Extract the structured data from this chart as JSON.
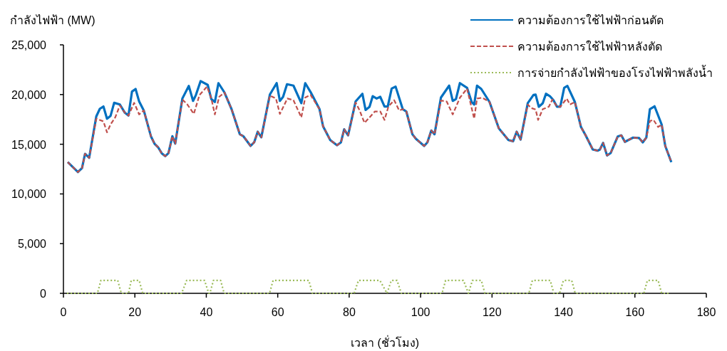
{
  "chart_data": {
    "type": "line",
    "xlabel": "เวลา (ชั่วโมง)",
    "ylabel": "กำลังไฟฟ้า (MW)",
    "xlim": [
      0,
      180
    ],
    "ylim": [
      0,
      25000
    ],
    "xticks": [
      0,
      20,
      40,
      60,
      80,
      100,
      120,
      140,
      160,
      180
    ],
    "yticks": [
      0,
      {
        "value": 5000,
        "label": "5,000"
      },
      {
        "value": 10000,
        "label": "10,000"
      },
      {
        "value": 15000,
        "label": "15,000"
      },
      {
        "value": 20000,
        "label": "20,000"
      },
      {
        "value": 25000,
        "label": "25,000"
      }
    ],
    "legend": "top right",
    "grid": false,
    "series": [
      {
        "name": "ความต้องการใช้ไฟฟ้าก่อนตัด",
        "color": "#0070c0",
        "line_style": "solid",
        "x": [
          1.2,
          4.05,
          5.2,
          6.05,
          7.2,
          9.2,
          10.2,
          11.2,
          12.2,
          13.2,
          14.2,
          15.8,
          17.2,
          18.2,
          19.2,
          20.2,
          21.2,
          22.5,
          24.5,
          25.5,
          26.5,
          27.5,
          28.5,
          29.4,
          30.5,
          31.3,
          33.3,
          35.1,
          36.3,
          37.1,
          38.4,
          40.4,
          41.4,
          42.4,
          43.4,
          45.1,
          47.1,
          49.4,
          50.4,
          52.4,
          53.4,
          54.4,
          55.4,
          57.8,
          59.7,
          60.6,
          61.5,
          62.6,
          64.4,
          66.6,
          67.7,
          69.2,
          71.7,
          72.7,
          74.7,
          76.6,
          77.7,
          78.6,
          79.7,
          81.8,
          83.7,
          84.6,
          85.7,
          86.6,
          87.7,
          88.7,
          89.9,
          90.8,
          91.9,
          93,
          95,
          96,
          97.7,
          98.7,
          101,
          101.9,
          103,
          103.9,
          105.7,
          108,
          109,
          109.9,
          111,
          113,
          114.3,
          115,
          115.8,
          117,
          119.3,
          121.9,
          124.6,
          125.9,
          126.9,
          128,
          130,
          131.6,
          132.2,
          133.1,
          134.2,
          135.1,
          136.2,
          137.2,
          138.2,
          139.1,
          140.2,
          141.1,
          143.2,
          144.9,
          146.2,
          148.2,
          149.6,
          150.2,
          151.1,
          152.2,
          153.2,
          155.2,
          156.2,
          157.2,
          159.5,
          161.2,
          162.2,
          163.2,
          164.2,
          165.5,
          167.5,
          168.5,
          170.2
        ],
        "values": [
          13200,
          12200,
          12600,
          14040,
          13630,
          17800,
          18570,
          18800,
          17570,
          17860,
          19170,
          19000,
          18170,
          17890,
          20300,
          20560,
          19300,
          18400,
          15800,
          15060,
          14700,
          14100,
          13800,
          14100,
          15800,
          15060,
          19600,
          20870,
          19360,
          19960,
          21350,
          20970,
          19540,
          19250,
          21150,
          20200,
          18500,
          16000,
          15800,
          14830,
          15190,
          16260,
          15700,
          20000,
          21150,
          19360,
          19770,
          21040,
          20900,
          19130,
          21150,
          20250,
          18530,
          16800,
          15420,
          14900,
          15190,
          16500,
          15900,
          19300,
          20080,
          18450,
          18770,
          19840,
          19600,
          19770,
          18800,
          18800,
          20600,
          20800,
          18530,
          18300,
          16000,
          15540,
          14830,
          15190,
          16380,
          16000,
          19700,
          20900,
          19360,
          19540,
          21150,
          20680,
          19250,
          19000,
          20900,
          20560,
          19250,
          16600,
          15420,
          15300,
          16260,
          15470,
          19130,
          19960,
          20000,
          18770,
          19130,
          20080,
          19840,
          19430,
          18770,
          18770,
          20680,
          20870,
          19250,
          16740,
          15900,
          14470,
          14350,
          14470,
          15140,
          13870,
          14110,
          15780,
          15900,
          15240,
          15670,
          15620,
          15190,
          15670,
          18530,
          18820,
          16980,
          14830,
          13200
        ]
      },
      {
        "name": "ความต้องการใช้ไฟฟ้าหลังตัด",
        "color": "#c0504d",
        "line_style": "dashed",
        "x": [
          1.2,
          4.05,
          5.2,
          6.05,
          7.2,
          9.2,
          11.2,
          12.2,
          13.2,
          14.5,
          15.8,
          17.2,
          18.2,
          19.8,
          21.2,
          22.5,
          24.5,
          25.5,
          26.5,
          27.5,
          28.5,
          29.4,
          30.5,
          31.3,
          33.3,
          34.7,
          36.5,
          38.1,
          40.2,
          41.4,
          42.4,
          43.6,
          45.1,
          47.1,
          49.4,
          50.4,
          52.4,
          53.4,
          54.4,
          55.4,
          57.8,
          59.5,
          60.6,
          62.7,
          64.4,
          66.6,
          67.7,
          69.2,
          71.7,
          72.7,
          74.7,
          76.6,
          77.7,
          78.6,
          79.7,
          81.8,
          82.8,
          84.3,
          85.7,
          87.2,
          88.7,
          89.9,
          91,
          92.6,
          94,
          95,
          96,
          97.7,
          98.7,
          101,
          101.9,
          103,
          103.9,
          105.7,
          107.3,
          109,
          111,
          113,
          115,
          115.8,
          117.3,
          119.3,
          121.9,
          124.6,
          125.9,
          126.9,
          128,
          130,
          130.9,
          132.2,
          132.9,
          134.2,
          135.9,
          136.9,
          138.2,
          139.1,
          140.9,
          141.8,
          143.2,
          144.9,
          146.2,
          148.2,
          149.6,
          150.2,
          151.1,
          152.2,
          153.2,
          155.2,
          156.2,
          157.2,
          159.5,
          161.2,
          162.2,
          163.2,
          164.2,
          165.2,
          166.5,
          167.5,
          168.5,
          170.2
        ],
        "values": [
          13200,
          12200,
          12600,
          14040,
          13630,
          17570,
          17300,
          16200,
          17000,
          17700,
          18900,
          18170,
          17890,
          19170,
          18000,
          18400,
          15800,
          15060,
          14700,
          14100,
          13800,
          14100,
          15800,
          15060,
          19500,
          19000,
          18050,
          19960,
          20800,
          19600,
          18000,
          19770,
          20200,
          18500,
          16000,
          15800,
          14830,
          15190,
          16260,
          15700,
          19900,
          19600,
          18050,
          19600,
          19430,
          17700,
          19700,
          19960,
          18530,
          16800,
          15420,
          14900,
          15190,
          16500,
          15900,
          19200,
          18500,
          17150,
          17700,
          18300,
          18300,
          17450,
          18800,
          19430,
          18400,
          18530,
          18300,
          16000,
          15540,
          14830,
          15190,
          16380,
          16000,
          19400,
          19300,
          18000,
          19680,
          20600,
          17570,
          19600,
          19680,
          19250,
          16600,
          15420,
          15300,
          16260,
          15470,
          19000,
          18650,
          18500,
          17450,
          18530,
          18770,
          19500,
          18770,
          18770,
          19600,
          19000,
          19250,
          16740,
          15900,
          14470,
          14350,
          14470,
          15140,
          13870,
          14110,
          15780,
          15900,
          15240,
          15670,
          15620,
          15190,
          15670,
          17330,
          17450,
          16740,
          16980,
          14830,
          13200
        ]
      },
      {
        "name": "การจ่ายกำลังไฟฟ้าของโรงไฟฟ้าพลังน้ำ",
        "color": "#9bbb59",
        "line_style": "dotted",
        "x": [
          1,
          9.5,
          10.5,
          15.2,
          16.2,
          18.2,
          19,
          21.2,
          22.2,
          33.1,
          34.5,
          39.5,
          40.7,
          41,
          42,
          44,
          45,
          57.7,
          58.7,
          68.7,
          69.7,
          81.4,
          82.6,
          88.6,
          90.6,
          91.8,
          93.4,
          94.6,
          106,
          107,
          112,
          113.4,
          114.5,
          117,
          118,
          130.3,
          131.3,
          136.3,
          137.3,
          138.9,
          140,
          142.3,
          143.3,
          162.5,
          163.5,
          166.5,
          167.5,
          170
        ],
        "values": [
          0,
          0,
          1300,
          1300,
          0,
          0,
          1300,
          1300,
          0,
          0,
          1300,
          1300,
          0,
          0,
          1300,
          1300,
          0,
          0,
          1300,
          1300,
          0,
          0,
          1300,
          1300,
          0,
          1300,
          1300,
          0,
          0,
          1300,
          1300,
          0,
          1300,
          1300,
          0,
          0,
          1300,
          1300,
          0,
          0,
          1300,
          1300,
          0,
          0,
          1300,
          1300,
          0,
          0
        ]
      }
    ]
  }
}
